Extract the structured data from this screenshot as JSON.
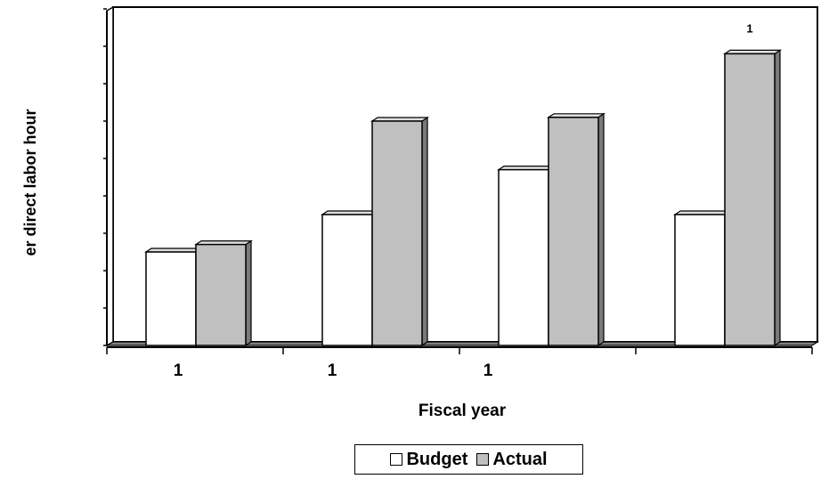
{
  "chart_data": {
    "type": "bar",
    "xlabel": "Fiscal year",
    "ylabel": "er direct labor hour",
    "categories": [
      "1",
      "1",
      "1",
      ""
    ],
    "value_labels": [
      "",
      "",
      "",
      "1"
    ],
    "ylim": [
      0,
      9
    ],
    "series": [
      {
        "name": "Budget",
        "values": [
          2.5,
          3.5,
          4.7,
          3.5
        ]
      },
      {
        "name": "Actual",
        "values": [
          2.7,
          6.0,
          6.1,
          7.8
        ]
      }
    ],
    "legend_position": "bottom",
    "grid": false
  },
  "colors": {
    "budget": "#ffffff",
    "actual": "#c0c0c0",
    "side_shade": "#7a7a7a",
    "top_shade": "#e0e0e0",
    "floor": "#808080"
  },
  "legend": {
    "budget_label": "Budget",
    "actual_label": "Actual"
  }
}
